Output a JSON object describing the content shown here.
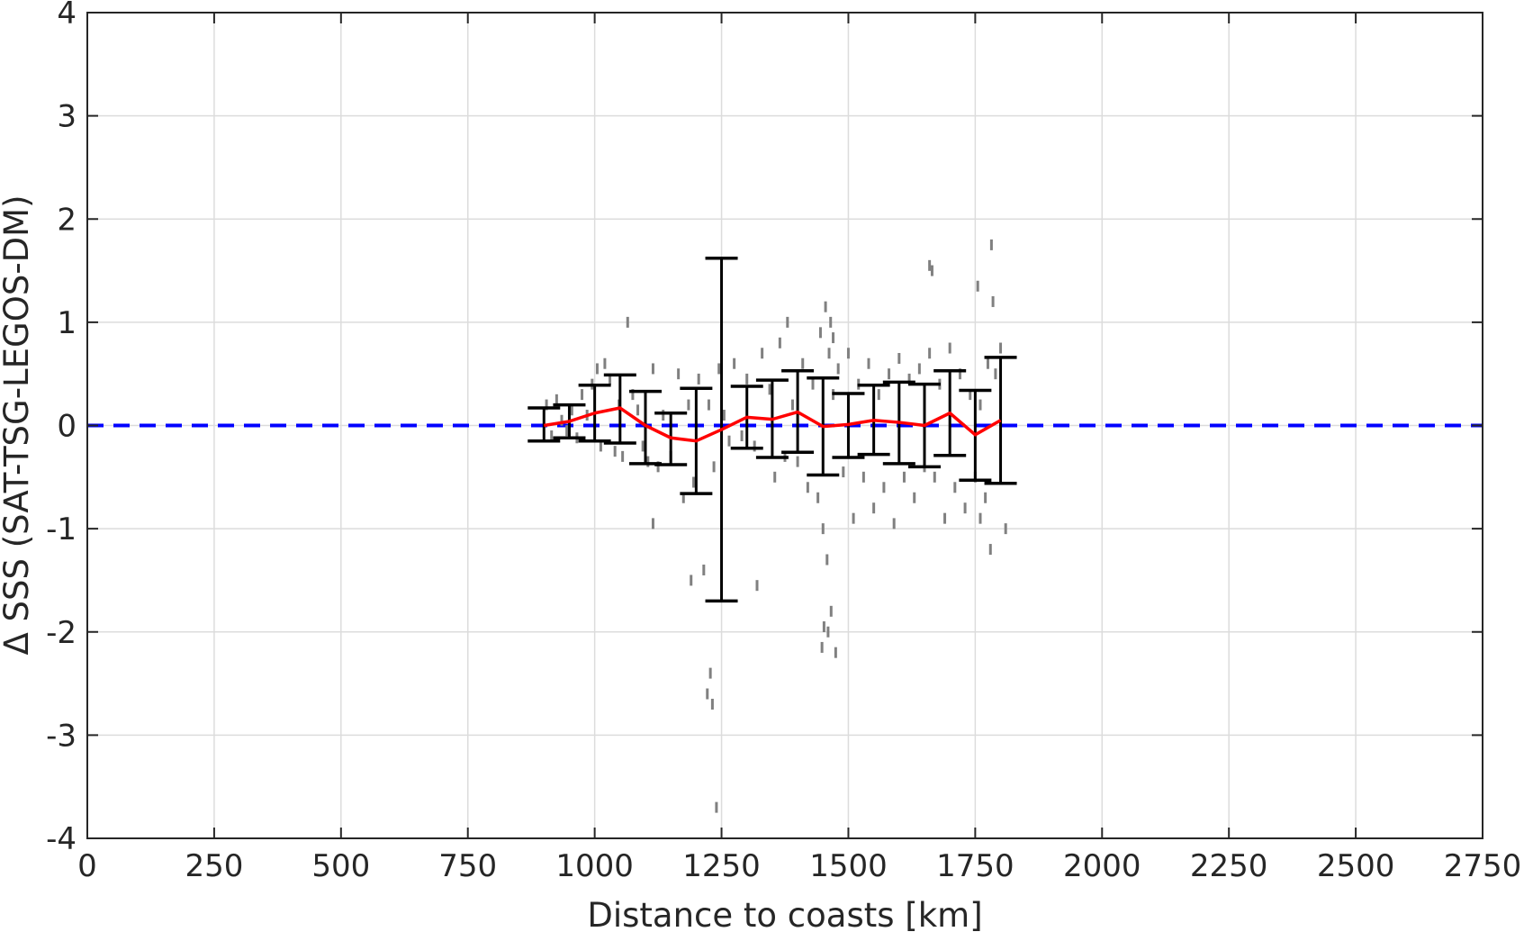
{
  "chart_data": {
    "type": "scatter",
    "title": "",
    "xlabel": "Distance to coasts [km]",
    "ylabel": "Δ SSS (SAT-TSG-LEGOS-DM)",
    "xlim": [
      0,
      2750
    ],
    "ylim": [
      -4,
      4
    ],
    "grid": true,
    "x_ticks": [
      0,
      250,
      500,
      750,
      1000,
      1250,
      1500,
      1750,
      2000,
      2250,
      2500,
      2750
    ],
    "y_ticks": [
      -4,
      -3,
      -2,
      -1,
      0,
      1,
      2,
      3,
      4
    ],
    "x_tick_labels": [
      "0",
      "250",
      "500",
      "750",
      "1000",
      "1250",
      "1500",
      "1750",
      "2000",
      "2250",
      "2500",
      "2750"
    ],
    "y_tick_labels": [
      "-4",
      "-3",
      "-2",
      "-1",
      "0",
      "1",
      "2",
      "3",
      "4"
    ],
    "zero_line": {
      "y": 0,
      "color": "#0000ff",
      "style": "dashed"
    },
    "series": [
      {
        "kind": "mean-line",
        "color": "#ff0000",
        "x": [
          900,
          950,
          1000,
          1050,
          1100,
          1150,
          1200,
          1250,
          1300,
          1350,
          1400,
          1450,
          1500,
          1550,
          1600,
          1650,
          1700,
          1750,
          1800
        ],
        "y": [
          0.0,
          0.04,
          0.12,
          0.17,
          0.0,
          -0.12,
          -0.15,
          -0.04,
          0.08,
          0.06,
          0.13,
          -0.01,
          0.01,
          0.05,
          0.03,
          0.0,
          0.12,
          -0.09,
          0.05
        ]
      },
      {
        "kind": "error-bars",
        "color": "#000000",
        "x": [
          900,
          950,
          1000,
          1050,
          1100,
          1150,
          1200,
          1250,
          1300,
          1350,
          1400,
          1450,
          1500,
          1550,
          1600,
          1650,
          1700,
          1750,
          1800
        ],
        "lower": [
          -0.15,
          -0.12,
          -0.15,
          -0.17,
          -0.37,
          -0.38,
          -0.66,
          -1.7,
          -0.22,
          -0.31,
          -0.26,
          -0.48,
          -0.31,
          -0.28,
          -0.37,
          -0.4,
          -0.29,
          -0.53,
          -0.56
        ],
        "upper": [
          0.17,
          0.2,
          0.39,
          0.49,
          0.33,
          0.12,
          0.36,
          1.62,
          0.38,
          0.44,
          0.53,
          0.46,
          0.31,
          0.39,
          0.42,
          0.4,
          0.53,
          0.34,
          0.66
        ]
      },
      {
        "kind": "scatter-points",
        "color": "#808080",
        "x": [
          905,
          915,
          925,
          935,
          945,
          955,
          965,
          975,
          985,
          995,
          1005,
          1012,
          1020,
          1030,
          1040,
          1048,
          1055,
          1065,
          1075,
          1085,
          1095,
          1105,
          1115,
          1125,
          1135,
          1150,
          1165,
          1175,
          1185,
          1195,
          1205,
          1215,
          1225,
          1235,
          1245,
          1255,
          1265,
          1275,
          1290,
          1300,
          1315,
          1330,
          1345,
          1355,
          1365,
          1375,
          1380,
          1390,
          1400,
          1410,
          1420,
          1430,
          1440,
          1445,
          1450,
          1455,
          1458,
          1462,
          1466,
          1470,
          1475,
          1480,
          1490,
          1500,
          1510,
          1520,
          1530,
          1540,
          1550,
          1560,
          1570,
          1580,
          1590,
          1600,
          1610,
          1620,
          1630,
          1640,
          1650,
          1660,
          1665,
          1670,
          1680,
          1690,
          1700,
          1710,
          1720,
          1730,
          1740,
          1750,
          1755,
          1760,
          1770,
          1775,
          1780,
          1790,
          1800,
          1810,
          1115,
          1190,
          1222,
          1228,
          1232,
          1240,
          1320,
          1448,
          1452,
          1460,
          1465,
          1470,
          1660,
          1782,
          1785,
          1760
        ],
        "y": [
          0.2,
          -0.1,
          0.25,
          0.05,
          -0.05,
          0.15,
          -0.12,
          0.3,
          0.1,
          0.4,
          0.55,
          -0.2,
          0.6,
          0.45,
          -0.25,
          0.2,
          -0.3,
          1.0,
          0.3,
          0.15,
          -0.2,
          -0.35,
          0.55,
          -0.4,
          0.1,
          -0.3,
          0.5,
          -0.7,
          0.2,
          -0.55,
          0.45,
          -1.4,
          0.2,
          -0.4,
          0.55,
          0.1,
          -0.15,
          0.6,
          -0.1,
          0.45,
          -0.2,
          0.7,
          0.35,
          -0.5,
          0.8,
          -0.3,
          1.0,
          0.2,
          -0.35,
          0.6,
          -0.6,
          0.4,
          -0.7,
          0.9,
          -1.0,
          1.15,
          -1.3,
          0.7,
          -1.8,
          0.3,
          -2.2,
          0.55,
          -0.45,
          0.7,
          -0.9,
          0.4,
          -0.5,
          0.6,
          -0.8,
          0.3,
          -0.6,
          0.5,
          -0.95,
          0.65,
          -0.5,
          0.45,
          -0.7,
          0.55,
          -0.4,
          0.7,
          1.5,
          -0.5,
          0.4,
          -0.9,
          0.75,
          -0.6,
          0.5,
          -0.8,
          0.3,
          -0.5,
          1.35,
          0.2,
          -0.7,
          0.6,
          -1.2,
          0.5,
          0.75,
          -1.0,
          -0.95,
          -1.5,
          -2.6,
          -2.4,
          -2.7,
          -3.7,
          -1.55,
          -2.15,
          -1.95,
          -2.0,
          1.0,
          0.85,
          1.55,
          1.75,
          1.2,
          -0.9
        ]
      }
    ]
  }
}
